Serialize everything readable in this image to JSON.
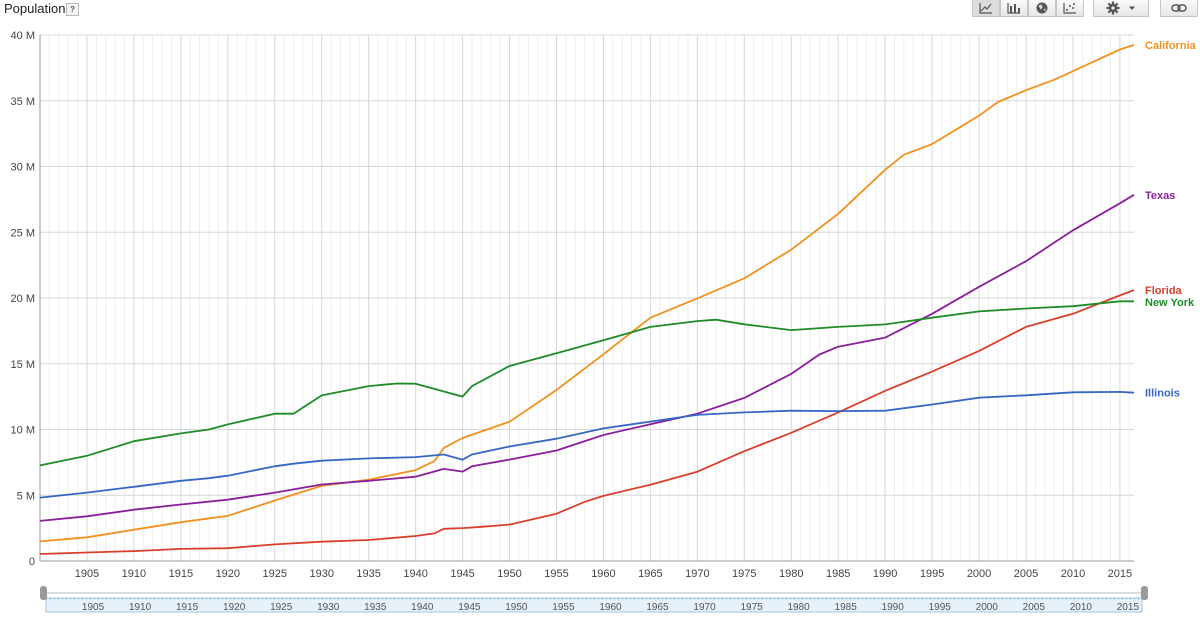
{
  "header": {
    "metric_title": "Population",
    "help_label": "?"
  },
  "toolbar": {
    "chart_types": [
      {
        "name": "line-chart",
        "icon": "line-chart-icon",
        "active": true
      },
      {
        "name": "bar-chart",
        "icon": "bar-chart-icon",
        "active": false
      },
      {
        "name": "map",
        "icon": "globe-icon",
        "active": false
      },
      {
        "name": "scatter",
        "icon": "scatter-icon",
        "active": false
      }
    ],
    "settings_icon": "gear-icon",
    "link_icon": "link-icon"
  },
  "chart_data": {
    "type": "line",
    "title": "Population",
    "xlabel": "",
    "ylabel": "",
    "xlim": [
      1900,
      2016.5
    ],
    "ylim": [
      0,
      40
    ],
    "y_ticks": [
      {
        "value": 0,
        "label": "0"
      },
      {
        "value": 5,
        "label": "5 M"
      },
      {
        "value": 10,
        "label": "10 M"
      },
      {
        "value": 15,
        "label": "15 M"
      },
      {
        "value": 20,
        "label": "20 M"
      },
      {
        "value": 25,
        "label": "25 M"
      },
      {
        "value": 30,
        "label": "30 M"
      },
      {
        "value": 35,
        "label": "35 M"
      },
      {
        "value": 40,
        "label": "40 M"
      }
    ],
    "x_ticks": [
      "1905",
      "1910",
      "1915",
      "1920",
      "1925",
      "1930",
      "1935",
      "1940",
      "1945",
      "1950",
      "1955",
      "1960",
      "1965",
      "1970",
      "1975",
      "1980",
      "1985",
      "1990",
      "1995",
      "2000",
      "2005",
      "2010",
      "2015"
    ],
    "grid": true,
    "legend": "right, labels at line ends",
    "series": [
      {
        "name": "California",
        "color": "#f1921e",
        "points": [
          [
            1900,
            1.49
          ],
          [
            1905,
            1.8
          ],
          [
            1910,
            2.38
          ],
          [
            1915,
            2.95
          ],
          [
            1920,
            3.43
          ],
          [
            1925,
            4.6
          ],
          [
            1930,
            5.71
          ],
          [
            1935,
            6.18
          ],
          [
            1940,
            6.91
          ],
          [
            1942,
            7.6
          ],
          [
            1943,
            8.6
          ],
          [
            1945,
            9.35
          ],
          [
            1950,
            10.59
          ],
          [
            1955,
            13.0
          ],
          [
            1960,
            15.72
          ],
          [
            1965,
            18.5
          ],
          [
            1970,
            19.97
          ],
          [
            1975,
            21.5
          ],
          [
            1980,
            23.67
          ],
          [
            1985,
            26.4
          ],
          [
            1990,
            29.76
          ],
          [
            1992,
            30.9
          ],
          [
            1995,
            31.7
          ],
          [
            2000,
            33.87
          ],
          [
            2002,
            34.9
          ],
          [
            2005,
            35.8
          ],
          [
            2008,
            36.6
          ],
          [
            2010,
            37.25
          ],
          [
            2015,
            38.9
          ],
          [
            2016.5,
            39.25
          ]
        ]
      },
      {
        "name": "Texas",
        "color": "#8b1e9c",
        "points": [
          [
            1900,
            3.05
          ],
          [
            1905,
            3.4
          ],
          [
            1910,
            3.9
          ],
          [
            1915,
            4.3
          ],
          [
            1920,
            4.66
          ],
          [
            1925,
            5.2
          ],
          [
            1930,
            5.82
          ],
          [
            1935,
            6.1
          ],
          [
            1940,
            6.41
          ],
          [
            1943,
            7.0
          ],
          [
            1945,
            6.8
          ],
          [
            1946,
            7.2
          ],
          [
            1950,
            7.71
          ],
          [
            1955,
            8.4
          ],
          [
            1960,
            9.58
          ],
          [
            1965,
            10.4
          ],
          [
            1970,
            11.2
          ],
          [
            1975,
            12.4
          ],
          [
            1980,
            14.23
          ],
          [
            1983,
            15.7
          ],
          [
            1985,
            16.3
          ],
          [
            1990,
            16.99
          ],
          [
            1995,
            18.8
          ],
          [
            2000,
            20.85
          ],
          [
            2005,
            22.8
          ],
          [
            2010,
            25.15
          ],
          [
            2015,
            27.2
          ],
          [
            2016.5,
            27.85
          ]
        ]
      },
      {
        "name": "Florida",
        "color": "#d9402b",
        "points": [
          [
            1900,
            0.53
          ],
          [
            1905,
            0.65
          ],
          [
            1910,
            0.75
          ],
          [
            1915,
            0.92
          ],
          [
            1920,
            0.97
          ],
          [
            1925,
            1.26
          ],
          [
            1930,
            1.47
          ],
          [
            1935,
            1.6
          ],
          [
            1940,
            1.9
          ],
          [
            1942,
            2.1
          ],
          [
            1943,
            2.45
          ],
          [
            1945,
            2.5
          ],
          [
            1947,
            2.6
          ],
          [
            1950,
            2.77
          ],
          [
            1955,
            3.6
          ],
          [
            1958,
            4.5
          ],
          [
            1960,
            4.95
          ],
          [
            1965,
            5.8
          ],
          [
            1970,
            6.79
          ],
          [
            1975,
            8.35
          ],
          [
            1980,
            9.75
          ],
          [
            1985,
            11.3
          ],
          [
            1990,
            12.94
          ],
          [
            1995,
            14.4
          ],
          [
            2000,
            15.98
          ],
          [
            2005,
            17.8
          ],
          [
            2010,
            18.8
          ],
          [
            2015,
            20.2
          ],
          [
            2016.5,
            20.6
          ]
        ]
      },
      {
        "name": "New York",
        "color": "#1f8c26",
        "points": [
          [
            1900,
            7.27
          ],
          [
            1905,
            8.0
          ],
          [
            1910,
            9.11
          ],
          [
            1915,
            9.7
          ],
          [
            1918,
            10.0
          ],
          [
            1920,
            10.39
          ],
          [
            1925,
            11.2
          ],
          [
            1927,
            11.2
          ],
          [
            1930,
            12.59
          ],
          [
            1935,
            13.3
          ],
          [
            1938,
            13.5
          ],
          [
            1940,
            13.48
          ],
          [
            1945,
            12.5
          ],
          [
            1946,
            13.3
          ],
          [
            1950,
            14.83
          ],
          [
            1955,
            15.8
          ],
          [
            1960,
            16.78
          ],
          [
            1965,
            17.8
          ],
          [
            1970,
            18.24
          ],
          [
            1972,
            18.35
          ],
          [
            1975,
            18.0
          ],
          [
            1980,
            17.56
          ],
          [
            1985,
            17.8
          ],
          [
            1990,
            17.99
          ],
          [
            1995,
            18.5
          ],
          [
            2000,
            18.98
          ],
          [
            2005,
            19.2
          ],
          [
            2010,
            19.38
          ],
          [
            2015,
            19.75
          ],
          [
            2016.5,
            19.75
          ]
        ]
      },
      {
        "name": "Illinois",
        "color": "#3567c5",
        "points": [
          [
            1900,
            4.82
          ],
          [
            1905,
            5.2
          ],
          [
            1910,
            5.64
          ],
          [
            1915,
            6.1
          ],
          [
            1918,
            6.3
          ],
          [
            1920,
            6.49
          ],
          [
            1925,
            7.2
          ],
          [
            1927,
            7.4
          ],
          [
            1930,
            7.63
          ],
          [
            1935,
            7.8
          ],
          [
            1940,
            7.9
          ],
          [
            1943,
            8.1
          ],
          [
            1945,
            7.7
          ],
          [
            1946,
            8.1
          ],
          [
            1950,
            8.71
          ],
          [
            1955,
            9.3
          ],
          [
            1960,
            10.08
          ],
          [
            1965,
            10.6
          ],
          [
            1970,
            11.11
          ],
          [
            1975,
            11.3
          ],
          [
            1980,
            11.43
          ],
          [
            1985,
            11.4
          ],
          [
            1990,
            11.43
          ],
          [
            1995,
            11.9
          ],
          [
            2000,
            12.42
          ],
          [
            2005,
            12.6
          ],
          [
            2010,
            12.83
          ],
          [
            2015,
            12.86
          ],
          [
            2016.5,
            12.8
          ]
        ]
      }
    ]
  },
  "range_slider": {
    "ticks": [
      "1905",
      "1910",
      "1915",
      "1920",
      "1925",
      "1930",
      "1935",
      "1940",
      "1945",
      "1950",
      "1955",
      "1960",
      "1965",
      "1970",
      "1975",
      "1980",
      "1985",
      "1990",
      "1995",
      "2000",
      "2005",
      "2010",
      "2015"
    ]
  }
}
